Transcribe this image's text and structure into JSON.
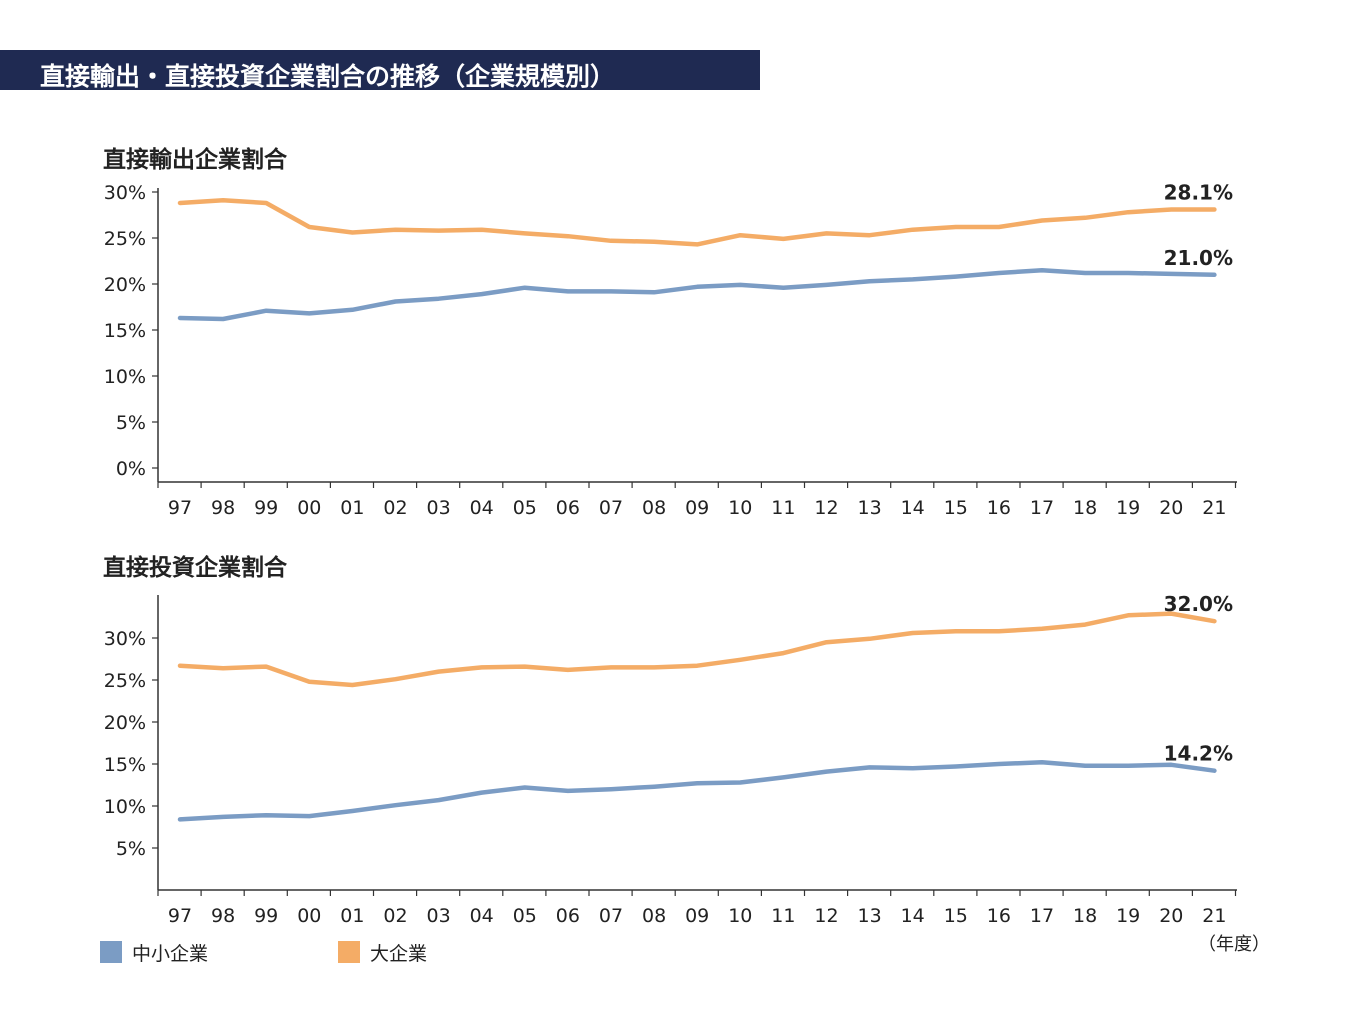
{
  "page_title": "直接輸出・直接投資企業割合の推移（企業規模別）",
  "x_unit": "（年度）",
  "colors": {
    "sme": "#7b9cc4",
    "large": "#f4ac66",
    "title_bg": "#1f2a52"
  },
  "legend": [
    {
      "name": "中小企業",
      "color": "#7b9cc4"
    },
    {
      "name": "大企業",
      "color": "#f4ac66"
    }
  ],
  "chart_data": [
    {
      "type": "line",
      "title": "直接輸出企業割合",
      "categories": [
        "97",
        "98",
        "99",
        "00",
        "01",
        "02",
        "03",
        "04",
        "05",
        "06",
        "07",
        "08",
        "09",
        "10",
        "11",
        "12",
        "13",
        "14",
        "15",
        "16",
        "17",
        "18",
        "19",
        "20",
        "21"
      ],
      "yticks": [
        "0%",
        "5%",
        "10%",
        "15%",
        "20%",
        "25%",
        "30%"
      ],
      "ylim": [
        0,
        30.5
      ],
      "series": [
        {
          "name": "大企業",
          "color": "#f4ac66",
          "values": [
            28.8,
            29.1,
            28.8,
            26.2,
            25.6,
            25.9,
            25.8,
            25.9,
            25.5,
            25.2,
            24.7,
            24.6,
            24.3,
            25.3,
            24.9,
            25.5,
            25.3,
            25.9,
            26.2,
            26.2,
            26.9,
            27.2,
            27.8,
            28.1,
            28.1
          ]
        },
        {
          "name": "中小企業",
          "color": "#7b9cc4",
          "values": [
            16.3,
            16.2,
            17.1,
            16.8,
            17.2,
            18.1,
            18.4,
            18.9,
            19.6,
            19.2,
            19.2,
            19.1,
            19.7,
            19.9,
            19.6,
            19.9,
            20.3,
            20.5,
            20.8,
            21.2,
            21.5,
            21.2,
            21.2,
            21.1,
            21.0
          ]
        }
      ],
      "end_labels": [
        "28.1%",
        "21.0%"
      ]
    },
    {
      "type": "line",
      "title": "直接投資企業割合",
      "categories": [
        "97",
        "98",
        "99",
        "00",
        "01",
        "02",
        "03",
        "04",
        "05",
        "06",
        "07",
        "08",
        "09",
        "10",
        "11",
        "12",
        "13",
        "14",
        "15",
        "16",
        "17",
        "18",
        "19",
        "20",
        "21"
      ],
      "yticks": [
        "5%",
        "10%",
        "15%",
        "20%",
        "25%",
        "30%"
      ],
      "ylim": [
        0,
        35
      ],
      "series": [
        {
          "name": "大企業",
          "color": "#f4ac66",
          "values": [
            26.7,
            26.4,
            26.6,
            24.8,
            24.4,
            25.1,
            26.0,
            26.5,
            26.6,
            26.2,
            26.5,
            26.5,
            26.7,
            27.4,
            28.2,
            29.5,
            29.9,
            30.6,
            30.8,
            30.8,
            31.1,
            31.6,
            32.7,
            32.9,
            32.0
          ]
        },
        {
          "name": "中小企業",
          "color": "#7b9cc4",
          "values": [
            8.4,
            8.7,
            8.9,
            8.8,
            9.4,
            10.1,
            10.7,
            11.6,
            12.2,
            11.8,
            12.0,
            12.3,
            12.7,
            12.8,
            13.4,
            14.1,
            14.6,
            14.5,
            14.7,
            15.0,
            15.2,
            14.8,
            14.8,
            14.9,
            14.2
          ]
        }
      ],
      "end_labels": [
        "32.0%",
        "14.2%"
      ]
    }
  ]
}
